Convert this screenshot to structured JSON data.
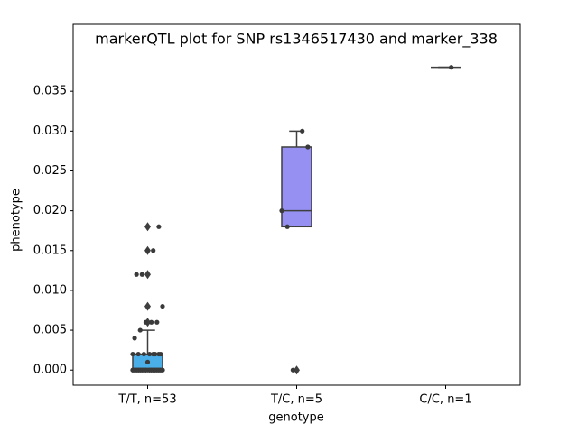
{
  "chart_data": {
    "type": "box",
    "title": "markerQTL plot for SNP rs1346517430 and marker_338",
    "x_label": "genotype",
    "y_label": "phenotype",
    "categories": [
      "T/T, n=53",
      "T/C, n=5",
      "C/C, n=1"
    ],
    "boxes": [
      {
        "whislo": 0.0,
        "q1": 0.0,
        "med": 0.0002,
        "q3": 0.002,
        "whishi": 0.005,
        "fliers": [
          0.006,
          0.008,
          0.012,
          0.015,
          0.018
        ],
        "color": "#4aaee9"
      },
      {
        "whislo": 0.018,
        "q1": 0.018,
        "med": 0.02,
        "q3": 0.028,
        "whishi": 0.03,
        "fliers": [
          0.0
        ],
        "color": "#9590f2"
      },
      {
        "whislo": 0.038,
        "q1": 0.038,
        "med": 0.038,
        "q3": 0.038,
        "whishi": 0.038,
        "fliers": [],
        "color": "#a88fe0"
      }
    ],
    "points": [
      [
        0,
        0,
        0,
        0,
        0,
        0,
        0,
        0,
        0,
        0,
        0,
        0,
        0,
        0,
        0,
        0,
        0,
        0,
        0,
        0,
        0,
        0,
        0,
        0,
        0,
        0,
        0,
        0,
        0,
        0,
        0,
        0,
        0,
        0.001,
        0.002,
        0.002,
        0.002,
        0.002,
        0.002,
        0.002,
        0.002,
        0.002,
        0.004,
        0.005,
        0.006,
        0.006,
        0.006,
        0.008,
        0.012,
        0.012,
        0.015,
        0.015,
        0.018
      ],
      [
        0.03,
        0.028,
        0.02,
        0.018,
        0.0
      ],
      [
        0.038
      ]
    ],
    "point_color": "#3a3a3a",
    "ylim": [
      -0.0019,
      0.0434
    ],
    "yticks": [
      {
        "value": 0,
        "label": "0.000"
      },
      {
        "value": 0.005,
        "label": "0.005"
      },
      {
        "value": 0.01,
        "label": "0.010"
      },
      {
        "value": 0.015,
        "label": "0.015"
      },
      {
        "value": 0.02,
        "label": "0.020"
      },
      {
        "value": 0.025,
        "label": "0.025"
      },
      {
        "value": 0.03,
        "label": "0.030"
      },
      {
        "value": 0.035,
        "label": "0.035"
      }
    ]
  }
}
